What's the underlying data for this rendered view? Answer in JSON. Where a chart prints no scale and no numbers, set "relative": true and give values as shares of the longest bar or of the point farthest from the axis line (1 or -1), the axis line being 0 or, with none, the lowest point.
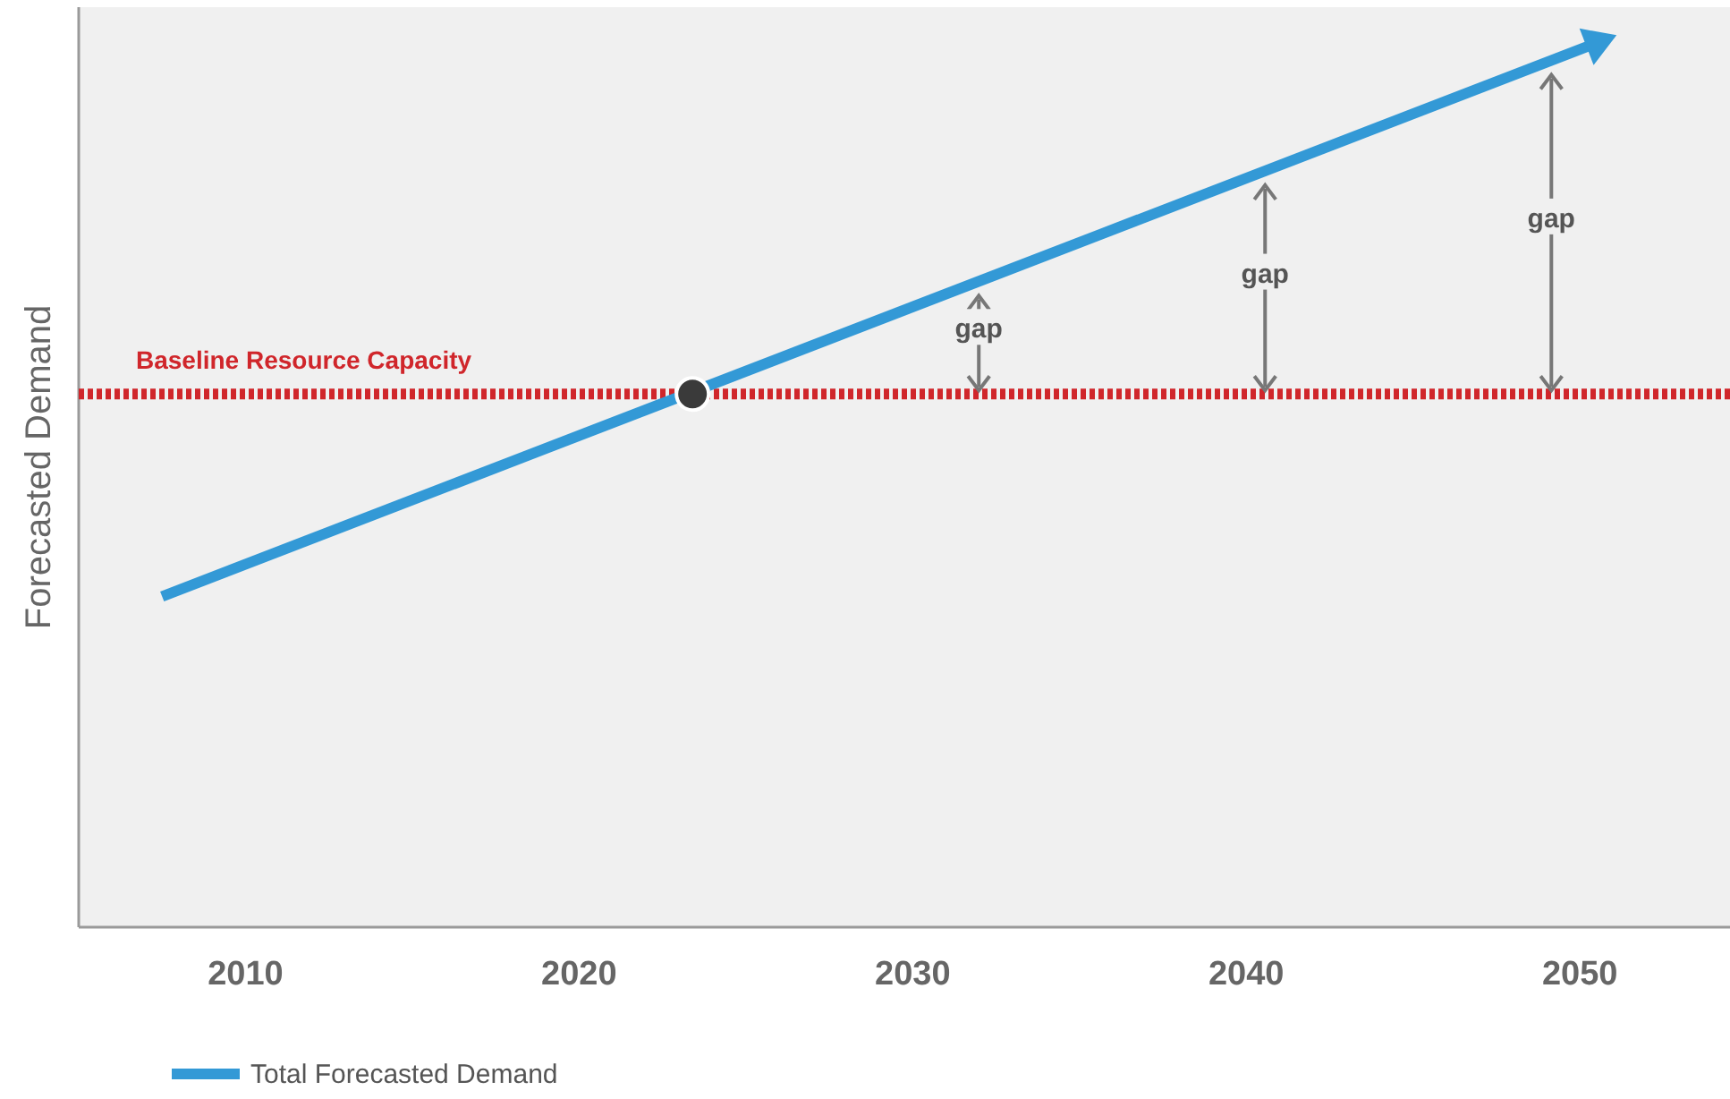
{
  "chart_data": {
    "type": "line",
    "relative": true,
    "ylabel": "Forecasted Demand",
    "xlim": [
      2005,
      2054.5
    ],
    "xticks": [
      2010,
      2020,
      2030,
      2040,
      2050
    ],
    "grid": false,
    "legend": "bottom",
    "line_style": "solid",
    "tick_labels": "x",
    "series": [
      {
        "name": "Total Forecasted Demand",
        "color": "#3399d6",
        "x": [
          2007.5,
          2050.5
        ],
        "values": [
          0.374,
          1
        ]
      },
      {
        "type": "scatter",
        "color": "#3a3a3a",
        "marker": "circle",
        "x": [
          2023.4
        ],
        "values": [
          0.603
        ]
      }
    ],
    "ref_lines": [
      {
        "axis": "y",
        "value": 0.603,
        "label": "Baseline Resource Capacity",
        "color": "#d0262b",
        "line_style": "dotted"
      }
    ],
    "annotations": [
      "gap",
      "gap",
      "gap"
    ]
  }
}
